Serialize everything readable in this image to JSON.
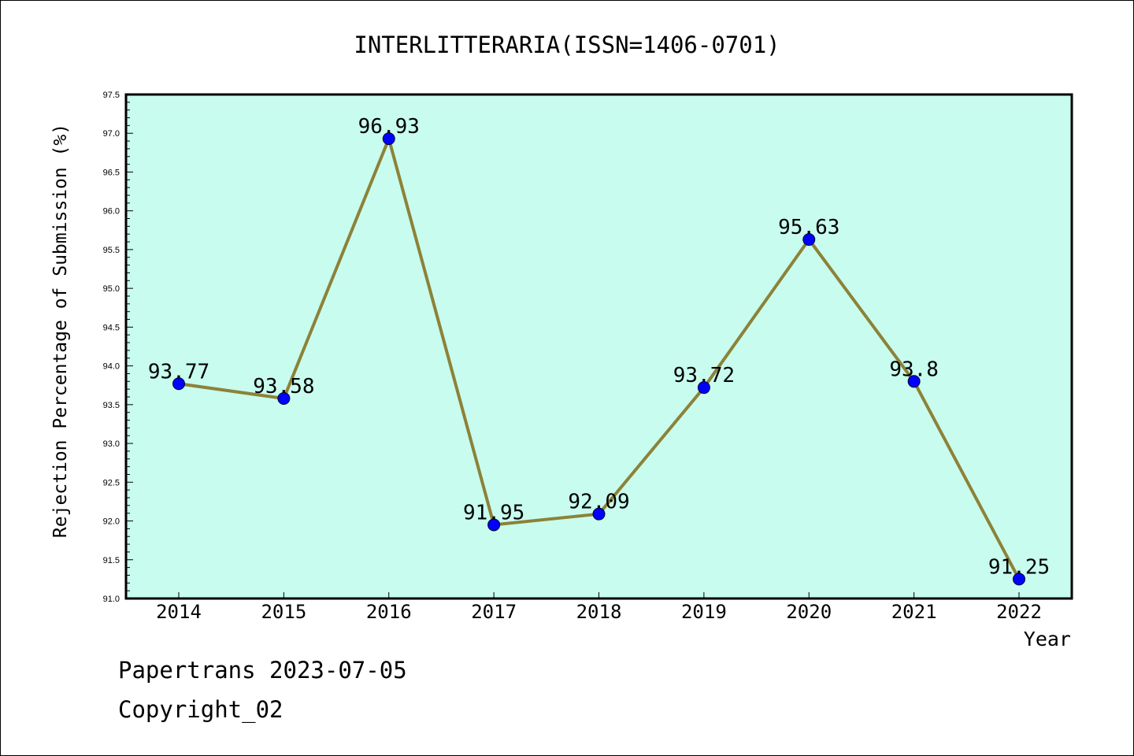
{
  "chart_data": {
    "type": "line",
    "title": "INTERLITTERARIA(ISSN=1406-0701)",
    "xlabel": "Year",
    "ylabel": "Rejection Percentage of Submission (%)",
    "categories": [
      "2014",
      "2015",
      "2016",
      "2017",
      "2018",
      "2019",
      "2020",
      "2021",
      "2022"
    ],
    "series": [
      {
        "values": [
          93.77,
          93.58,
          96.93,
          91.95,
          92.09,
          93.72,
          95.63,
          93.8,
          91.25
        ],
        "labels": [
          "93.77",
          "93.58",
          "96.93",
          "91.95",
          "92.09",
          "93.72",
          "95.63",
          "93.8",
          "91.25"
        ]
      }
    ],
    "ylim": [
      91.0,
      97.5
    ],
    "yticks": [
      "91.0",
      "91.5",
      "92.0",
      "92.5",
      "93.0",
      "93.5",
      "94.0",
      "94.5",
      "95.0",
      "95.5",
      "96.0",
      "96.5",
      "97.0",
      "97.5"
    ],
    "grid": false,
    "colors": {
      "plot_background": "#c8fcee",
      "line": "#8c8238",
      "marker": "#0000ff"
    }
  },
  "footer": {
    "line1": "Papertrans 2023-07-05",
    "line2": "Copyright_02"
  }
}
